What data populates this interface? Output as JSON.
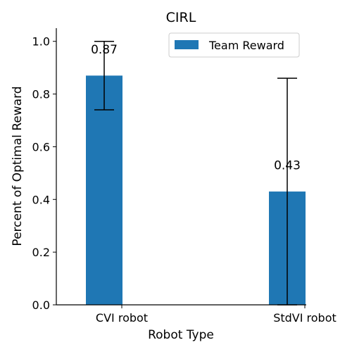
{
  "chart_data": {
    "type": "bar",
    "title": "CIRL",
    "xlabel": "Robot Type",
    "ylabel": "Percent of Optimal Reward",
    "categories": [
      "CVI robot",
      "StdVI robot"
    ],
    "series": [
      {
        "name": "Team Reward",
        "values": [
          0.87,
          0.43
        ],
        "error_low": [
          0.74,
          0.0
        ],
        "error_high": [
          1.0,
          0.86
        ],
        "data_labels": [
          "0.87",
          "0.43"
        ],
        "color": "#1f77b4"
      }
    ],
    "ylim": [
      0,
      1.05
    ],
    "yticks": [
      "0.0",
      "0.2",
      "0.4",
      "0.6",
      "0.8",
      "1.0"
    ],
    "grid": false,
    "legend_position": "top-right"
  }
}
